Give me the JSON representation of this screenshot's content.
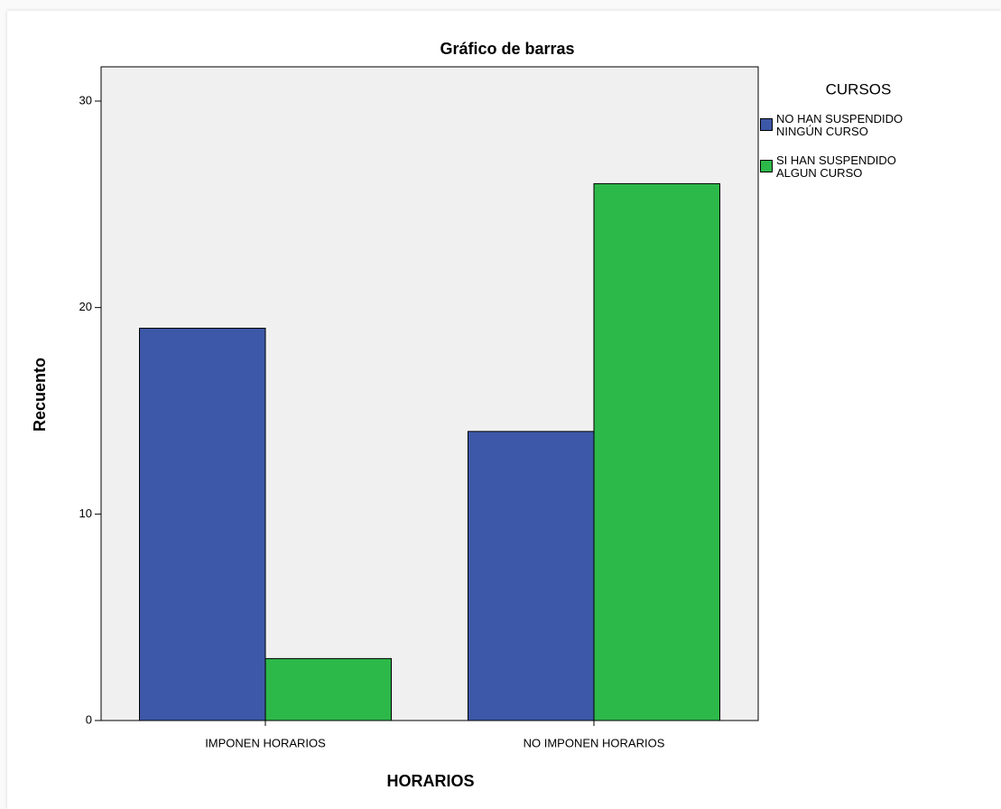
{
  "chart_data": {
    "type": "bar",
    "title": "Gráfico de barras",
    "x_label": "HORARIOS",
    "y_label": "Recuento",
    "categories": [
      "IMPONEN HORARIOS",
      "NO IMPONEN HORARIOS"
    ],
    "legend_title": "CURSOS",
    "series": [
      {
        "name": "NO HAN SUSPENDIDO NINGÚN CURSO",
        "color": "#3d58a8",
        "values": [
          19,
          14
        ]
      },
      {
        "name": "SI HAN SUSPENDIDO ALGUN CURSO",
        "color": "#2db84a",
        "values": [
          3,
          26
        ]
      }
    ],
    "ylim": [
      0,
      31.66
    ],
    "yticks": [
      0,
      10,
      20,
      30
    ],
    "grid": false,
    "legend": "right"
  }
}
